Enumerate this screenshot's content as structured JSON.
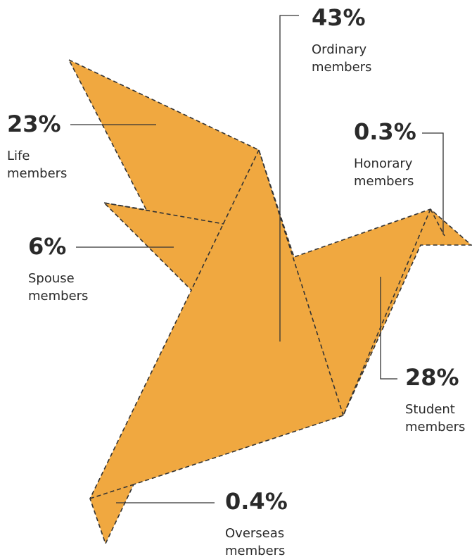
{
  "groups": [
    {
      "value": "43%",
      "lines": [
        "Ordinary",
        "members"
      ]
    },
    {
      "value": "23%",
      "lines": [
        "Life",
        "members"
      ]
    },
    {
      "value": "0.3%",
      "lines": [
        "Honorary",
        "members"
      ]
    },
    {
      "value": "6%",
      "lines": [
        "Spouse",
        "members"
      ]
    },
    {
      "value": "28%",
      "lines": [
        "Student",
        "members"
      ]
    },
    {
      "value": "0.4%",
      "lines": [
        "Overseas",
        "members"
      ]
    }
  ]
}
